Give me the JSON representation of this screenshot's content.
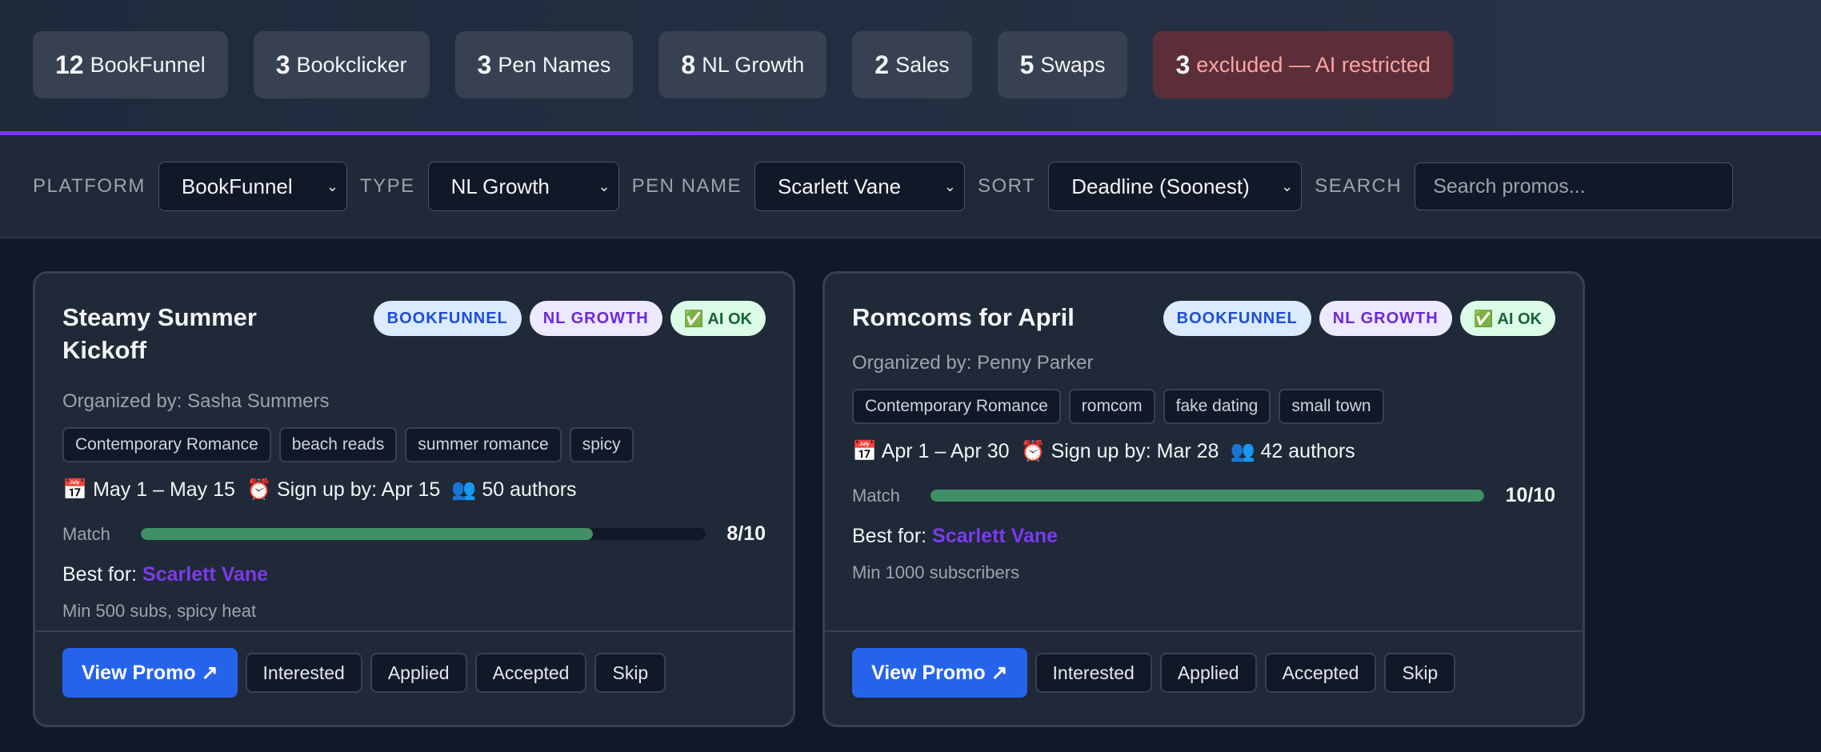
{
  "stats": [
    {
      "count": "12",
      "label": "BookFunnel"
    },
    {
      "count": "3",
      "label": "Bookclicker"
    },
    {
      "count": "3",
      "label": "Pen Names"
    },
    {
      "count": "8",
      "label": "NL Growth"
    },
    {
      "count": "2",
      "label": "Sales"
    },
    {
      "count": "5",
      "label": "Swaps"
    },
    {
      "count": "3",
      "label": "excluded — AI restricted"
    }
  ],
  "filters": {
    "platform": {
      "label": "PLATFORM",
      "value": "BookFunnel"
    },
    "type": {
      "label": "TYPE",
      "value": "NL Growth"
    },
    "pen_name": {
      "label": "PEN NAME",
      "value": "Scarlett Vane"
    },
    "sort": {
      "label": "SORT",
      "value": "Deadline (Soonest)"
    },
    "search": {
      "label": "SEARCH",
      "placeholder": "Search promos..."
    }
  },
  "colors": {
    "accent": "#7c3aed",
    "primary": "#2563eb",
    "match": "#3f8f67"
  },
  "cards": [
    {
      "title": "Steamy Summer Kickoff",
      "badges": [
        "BOOKFUNNEL",
        "NL GROWTH",
        "✅ AI OK"
      ],
      "organizer": "Organized by: Sasha Summers",
      "tags": [
        "Contemporary Romance",
        "beach reads",
        "summer romance",
        "spicy"
      ],
      "dates": "📅 May 1 – May 15",
      "signup": "⏰ Sign up by: Apr 15",
      "authors": "👥 50 authors",
      "match_label": "Match",
      "match": 8,
      "match_text": "8/10",
      "best_label": "Best for:",
      "best_for": "Scarlett Vane",
      "requirement": "Min 500 subs, spicy heat",
      "view": "View Promo ↗",
      "actions": [
        "Interested",
        "Applied",
        "Accepted",
        "Skip"
      ]
    },
    {
      "title": "Romcoms for April",
      "badges": [
        "BOOKFUNNEL",
        "NL GROWTH",
        "✅ AI OK"
      ],
      "organizer": "Organized by: Penny Parker",
      "tags": [
        "Contemporary Romance",
        "romcom",
        "fake dating",
        "small town"
      ],
      "dates": "📅 Apr 1 – Apr 30",
      "signup": "⏰ Sign up by: Mar 28",
      "authors": "👥 42 authors",
      "match_label": "Match",
      "match": 10,
      "match_text": "10/10",
      "best_label": "Best for:",
      "best_for": "Scarlett Vane",
      "requirement": "Min 1000 subscribers",
      "view": "View Promo ↗",
      "actions": [
        "Interested",
        "Applied",
        "Accepted",
        "Skip"
      ]
    }
  ]
}
